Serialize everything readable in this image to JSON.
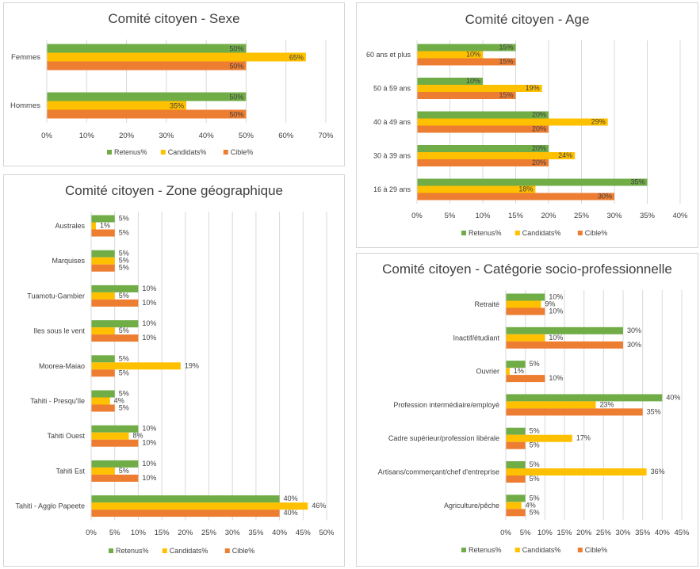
{
  "colors": {
    "retenus": "#70ad47",
    "candidats": "#ffc000",
    "cible": "#ed7d31",
    "grid": "#d9d9d9",
    "text": "#404040"
  },
  "chart_data": [
    {
      "id": "sexe",
      "type": "bar",
      "orientation": "horizontal",
      "title": "Comité citoyen - Sexe",
      "categories": [
        "Femmes",
        "Hommes"
      ],
      "series": [
        {
          "name": "Retenus%",
          "values": [
            50,
            50
          ]
        },
        {
          "name": "Candidats%",
          "values": [
            65,
            35
          ]
        },
        {
          "name": "Cible%",
          "values": [
            50,
            50
          ]
        }
      ],
      "xlim": [
        0,
        70
      ],
      "xticks": [
        0,
        10,
        20,
        30,
        40,
        50,
        60,
        70
      ],
      "tick_suffix": "%",
      "legend": "bottom",
      "label_position": "inside-end",
      "grid": true
    },
    {
      "id": "age",
      "type": "bar",
      "orientation": "horizontal",
      "title": "Comité citoyen - Age",
      "categories": [
        "60 ans et plus",
        "50 à 59 ans",
        "40 à 49 ans",
        "30 à 39 ans",
        "16 à 29 ans"
      ],
      "series": [
        {
          "name": "Retenus%",
          "values": [
            15,
            10,
            20,
            20,
            35
          ]
        },
        {
          "name": "Candidats%",
          "values": [
            10,
            19,
            29,
            24,
            18
          ]
        },
        {
          "name": "Cible%",
          "values": [
            15,
            15,
            20,
            20,
            30
          ]
        }
      ],
      "xlim": [
        0,
        40
      ],
      "xticks": [
        0,
        5,
        10,
        15,
        20,
        25,
        30,
        35,
        40
      ],
      "tick_suffix": "%",
      "legend": "bottom",
      "label_position": "inside-end",
      "grid": true
    },
    {
      "id": "zone",
      "type": "bar",
      "orientation": "horizontal",
      "title": "Comité citoyen - Zone géographique",
      "categories": [
        "Australes",
        "Marquises",
        "Tuamotu-Gambier",
        "Iles sous le vent",
        "Moorea-Maiao",
        "Tahiti - Presqu'île",
        "Tahiti Ouest",
        "Tahiti Est",
        "Tahiti - Agglo Papeete"
      ],
      "series": [
        {
          "name": "Retenus%",
          "values": [
            5,
            5,
            10,
            10,
            5,
            5,
            10,
            10,
            40
          ]
        },
        {
          "name": "Candidats%",
          "values": [
            1,
            5,
            5,
            5,
            19,
            4,
            8,
            5,
            46
          ]
        },
        {
          "name": "Cible%",
          "values": [
            5,
            5,
            10,
            10,
            5,
            5,
            10,
            10,
            40
          ]
        }
      ],
      "xlim": [
        0,
        50
      ],
      "xticks": [
        0,
        5,
        10,
        15,
        20,
        25,
        30,
        35,
        40,
        45,
        50
      ],
      "tick_suffix": "%",
      "legend": "bottom",
      "label_position": "outside-end",
      "grid": true
    },
    {
      "id": "csp",
      "type": "bar",
      "orientation": "horizontal",
      "title": "Comité citoyen - Catégorie socio-professionnelle",
      "categories": [
        "Retraité",
        "Inactif/étudiant",
        "Ouvrier",
        "Profession intermédiaire/employé",
        "Cadre supérieur/profession libérale",
        "Artisans/commerçant/chef d'entreprise",
        "Agriculture/pêche"
      ],
      "series": [
        {
          "name": "Retenus%",
          "values": [
            10,
            30,
            5,
            40,
            5,
            5,
            5
          ]
        },
        {
          "name": "Candidats%",
          "values": [
            9,
            10,
            1,
            23,
            17,
            36,
            4
          ]
        },
        {
          "name": "Cible%",
          "values": [
            10,
            30,
            10,
            35,
            5,
            5,
            5
          ]
        }
      ],
      "xlim": [
        0,
        45
      ],
      "xticks": [
        0,
        5,
        10,
        15,
        20,
        25,
        30,
        35,
        40,
        45
      ],
      "tick_suffix": "%",
      "legend": "bottom",
      "label_position": "outside-end",
      "grid": true
    }
  ]
}
